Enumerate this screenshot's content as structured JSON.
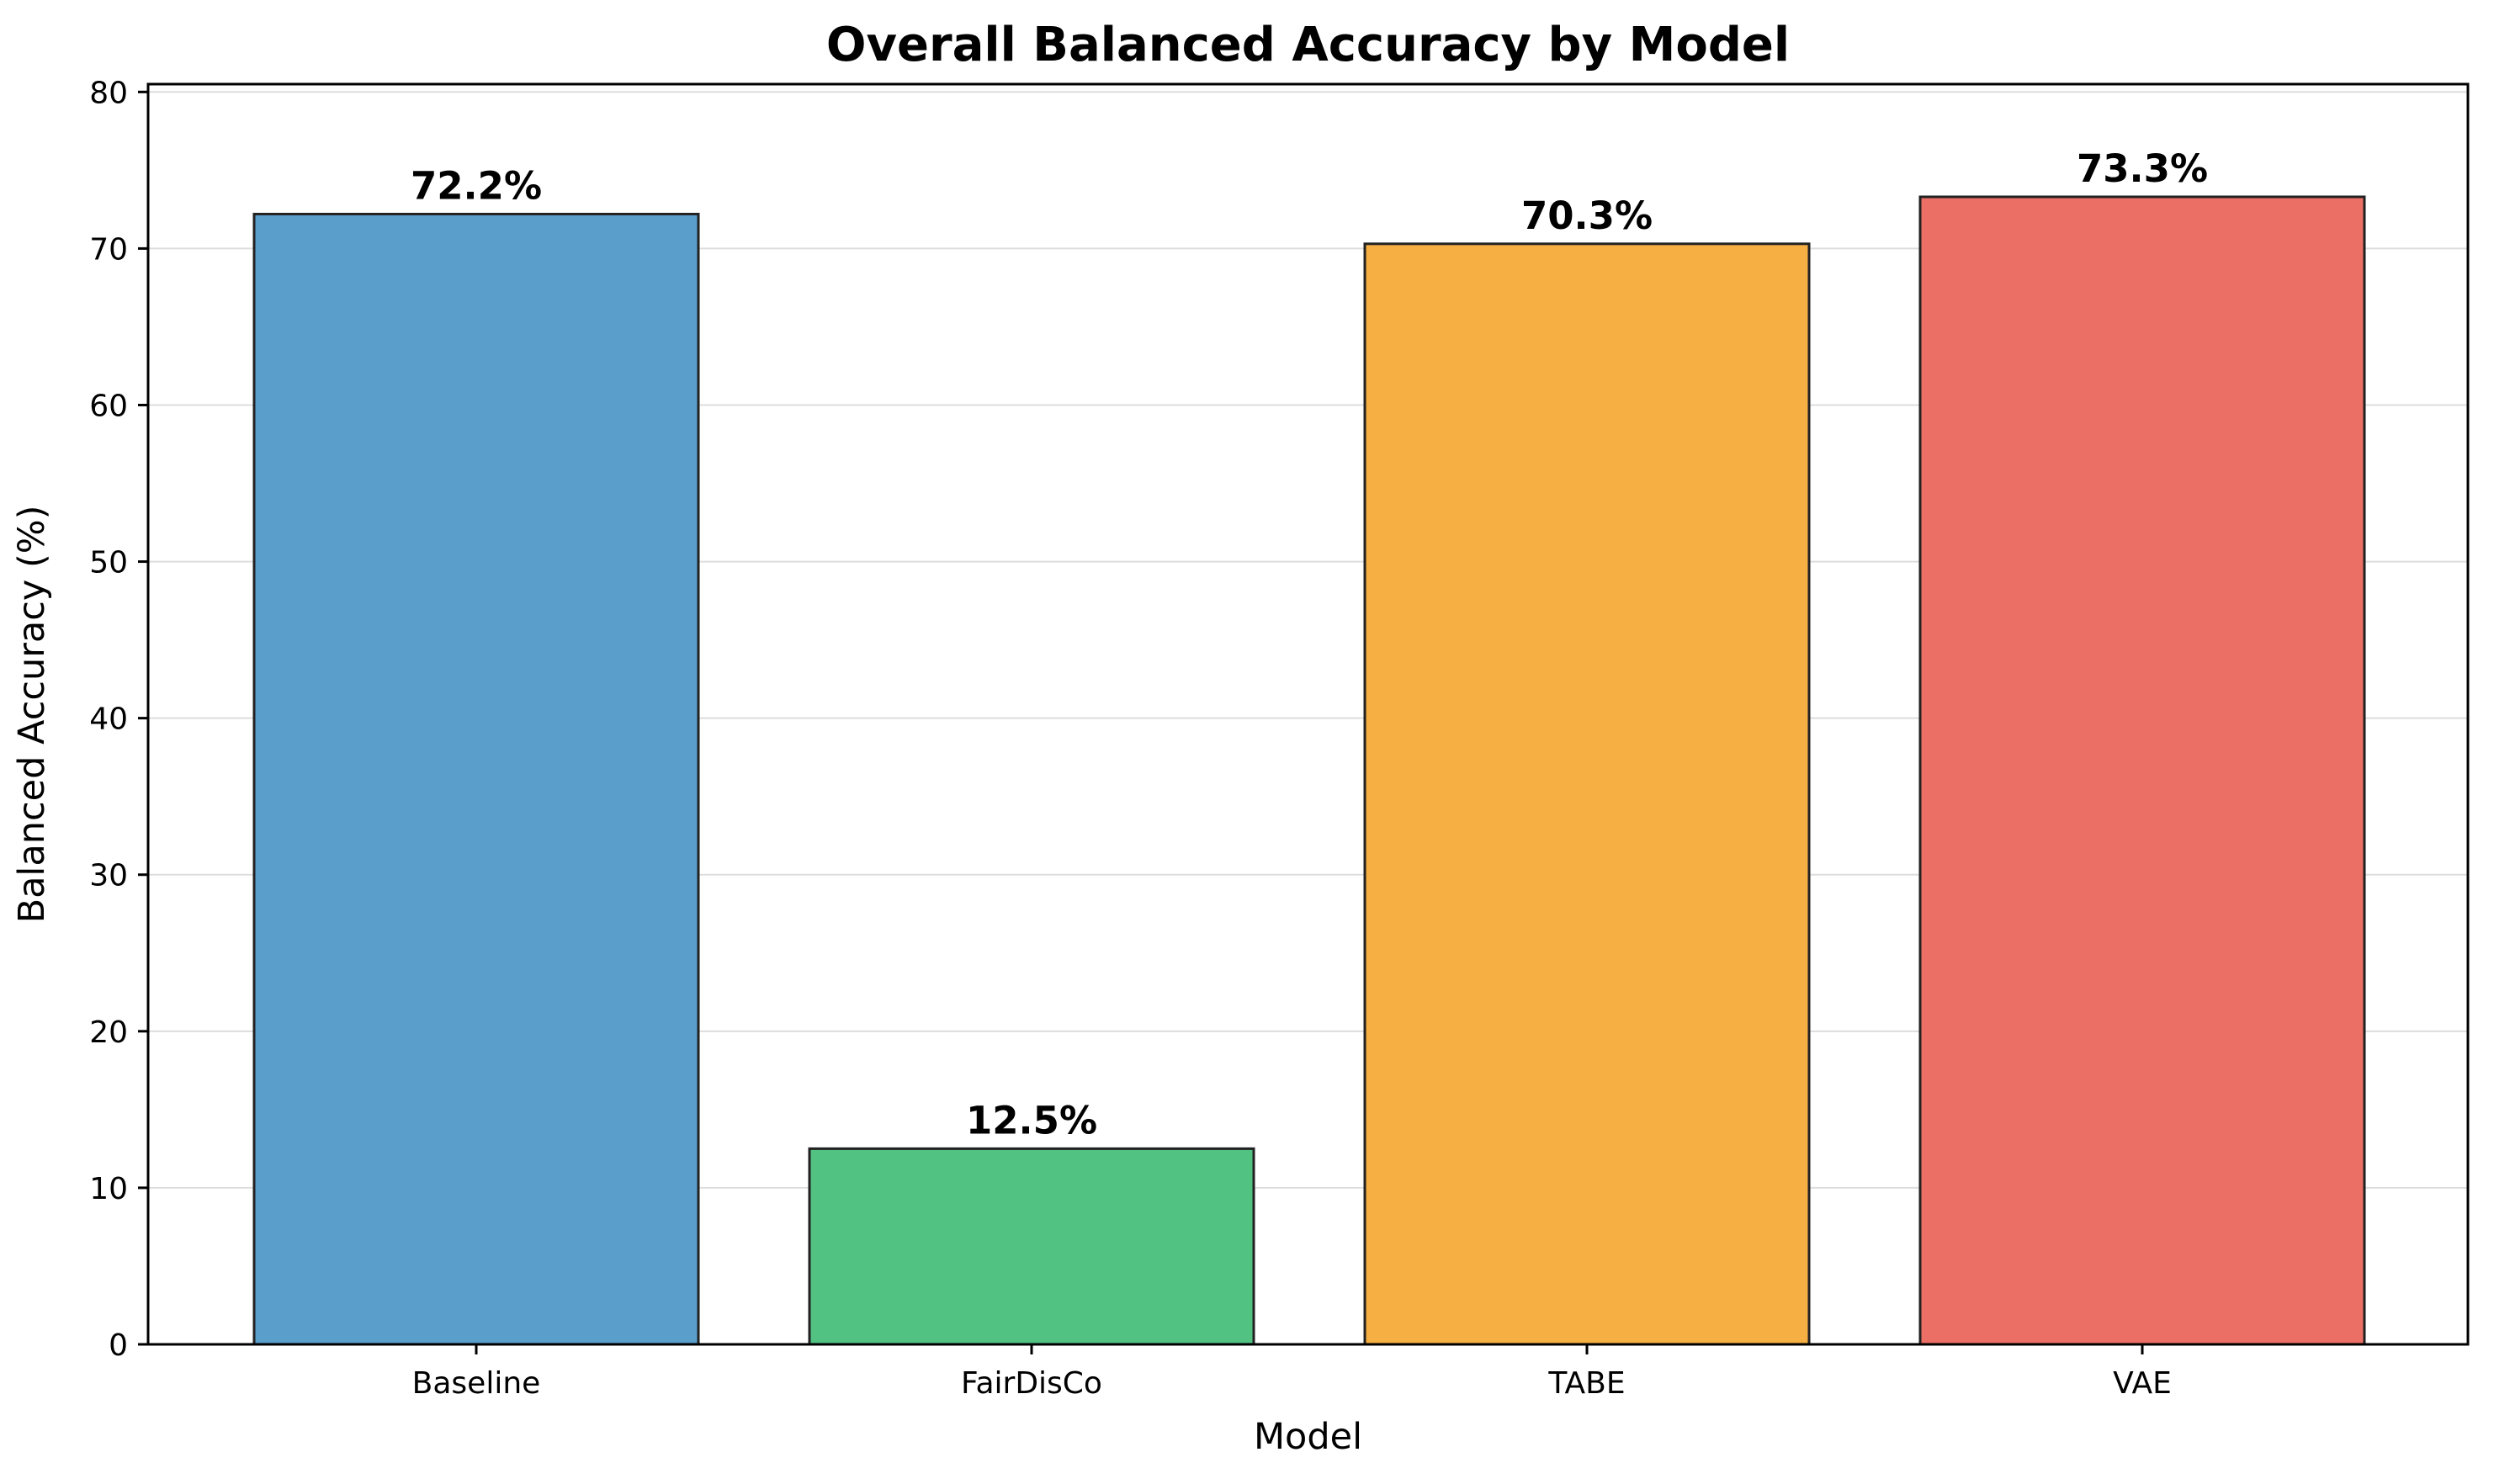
{
  "chart_data": {
    "type": "bar",
    "title": "Overall Balanced Accuracy by Model",
    "xlabel": "Model",
    "ylabel": "Balanced Accuracy (%)",
    "categories": [
      "Baseline",
      "FairDisCo",
      "TABE",
      "VAE"
    ],
    "values": [
      72.2,
      12.5,
      70.3,
      73.3
    ],
    "value_labels": [
      "72.2%",
      "12.5%",
      "70.3%",
      "73.3%"
    ],
    "colors": [
      "#5A9ECC",
      "#52C282",
      "#F5AF42",
      "#EB6F64"
    ],
    "edge_color": "#222222",
    "ylim": [
      0,
      80.5
    ],
    "yticks": [
      0,
      10,
      20,
      30,
      40,
      50,
      60,
      70,
      80
    ],
    "ytick_labels": [
      "0",
      "10",
      "20",
      "30",
      "40",
      "50",
      "60",
      "70",
      "80"
    ],
    "grid": "y",
    "legend": "none"
  }
}
